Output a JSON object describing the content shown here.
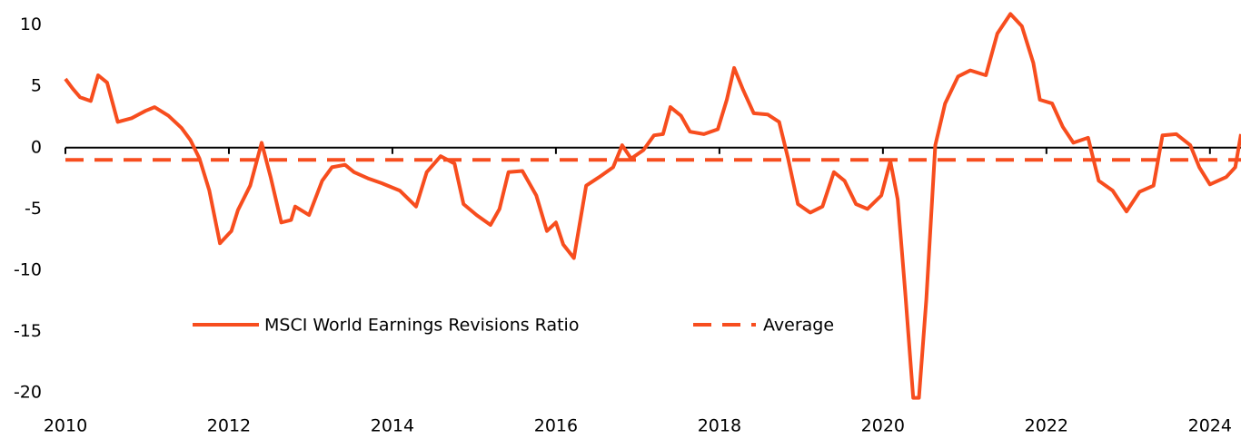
{
  "chart_data": {
    "type": "line",
    "x": [
      2010.0,
      2010.09,
      2010.18,
      2010.31,
      2010.4,
      2010.51,
      2010.64,
      2010.81,
      2010.98,
      2011.09,
      2011.26,
      2011.42,
      2011.53,
      2011.64,
      2011.76,
      2011.89,
      2012.03,
      2012.11,
      2012.26,
      2012.4,
      2012.51,
      2012.64,
      2012.76,
      2012.81,
      2012.98,
      2013.14,
      2013.26,
      2013.42,
      2013.53,
      2013.7,
      2013.87,
      2014.09,
      2014.29,
      2014.42,
      2014.59,
      2014.76,
      2014.87,
      2015.03,
      2015.2,
      2015.31,
      2015.42,
      2015.59,
      2015.76,
      2015.89,
      2016.0,
      2016.09,
      2016.22,
      2016.37,
      2016.53,
      2016.7,
      2016.81,
      2016.92,
      2017.07,
      2017.2,
      2017.31,
      2017.4,
      2017.53,
      2017.64,
      2017.81,
      2017.98,
      2018.09,
      2018.18,
      2018.29,
      2018.42,
      2018.59,
      2018.73,
      2018.84,
      2018.96,
      2019.11,
      2019.26,
      2019.4,
      2019.53,
      2019.67,
      2019.81,
      2019.98,
      2020.09,
      2020.18,
      2020.27,
      2020.37,
      2020.44,
      2020.53,
      2020.64,
      2020.76,
      2020.92,
      2021.07,
      2021.26,
      2021.4,
      2021.56,
      2021.7,
      2021.84,
      2021.92,
      2022.07,
      2022.2,
      2022.33,
      2022.51,
      2022.64,
      2022.81,
      2022.98,
      2023.14,
      2023.31,
      2023.42,
      2023.59,
      2023.76,
      2023.87,
      2024.0,
      2024.2,
      2024.31,
      2024.38
    ],
    "series": [
      {
        "name": "MSCI World Earnings Revisions Ratio",
        "color": "#f74d1e",
        "values": [
          5.6,
          4.8,
          4.1,
          3.8,
          5.9,
          5.3,
          2.1,
          2.4,
          3.0,
          3.3,
          2.6,
          1.6,
          0.6,
          -0.9,
          -3.5,
          -7.8,
          -6.8,
          -5.1,
          -3.1,
          0.4,
          -2.4,
          -6.1,
          -5.9,
          -4.8,
          -5.5,
          -2.7,
          -1.6,
          -1.4,
          -2.0,
          -2.5,
          -2.9,
          -3.5,
          -4.8,
          -2.0,
          -0.7,
          -1.3,
          -4.6,
          -5.5,
          -6.3,
          -5.0,
          -2.0,
          -1.9,
          -3.9,
          -6.8,
          -6.1,
          -7.9,
          -9.0,
          -3.1,
          -2.4,
          -1.6,
          0.2,
          -0.9,
          -0.2,
          1.0,
          1.1,
          3.3,
          2.6,
          1.3,
          1.1,
          1.5,
          3.9,
          6.5,
          4.7,
          2.8,
          2.7,
          2.1,
          -0.9,
          -4.6,
          -5.3,
          -4.8,
          -2.0,
          -2.7,
          -4.6,
          -5.0,
          -3.9,
          -1.1,
          -4.2,
          -11.6,
          -20.4,
          -20.4,
          -12.4,
          0.2,
          3.6,
          5.8,
          6.3,
          5.9,
          9.3,
          10.9,
          9.9,
          6.9,
          3.9,
          3.6,
          1.7,
          0.4,
          0.8,
          -2.7,
          -3.5,
          -5.2,
          -3.6,
          -3.1,
          1.0,
          1.1,
          0.2,
          -1.6,
          -3.0,
          -2.4,
          -1.6,
          1.1
        ]
      }
    ],
    "reference_line": {
      "name": "Average",
      "value": -1,
      "color": "#f74d1e"
    },
    "xlim": [
      2010,
      2024.38
    ],
    "xticks": [
      2010,
      2012,
      2014,
      2016,
      2018,
      2020,
      2022,
      2024
    ],
    "ylim": [
      -20.5,
      11
    ],
    "yticks": [
      -20,
      -15,
      -10,
      -5,
      0,
      5,
      10
    ],
    "grid": false
  }
}
